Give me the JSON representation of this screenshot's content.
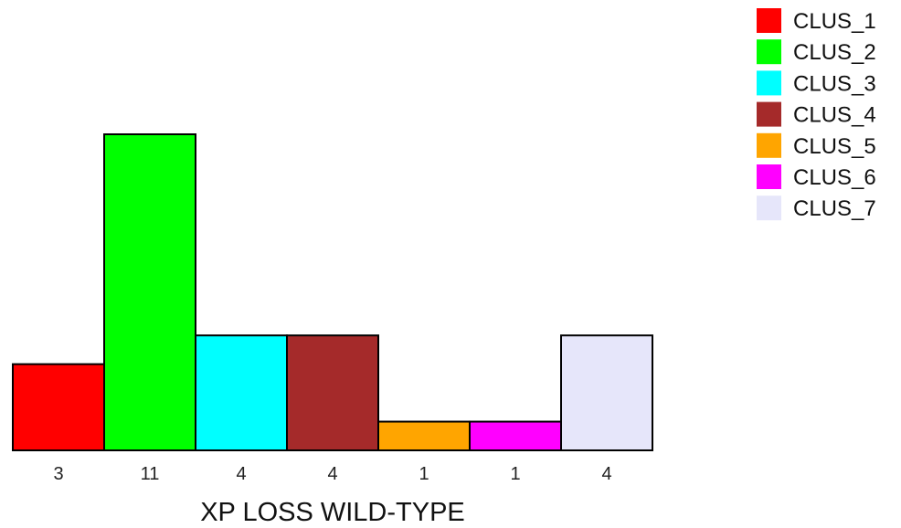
{
  "chart_data": {
    "type": "bar",
    "categories": [
      "CLUS_1",
      "CLUS_2",
      "CLUS_3",
      "CLUS_4",
      "CLUS_5",
      "CLUS_6",
      "CLUS_7"
    ],
    "values": [
      3,
      11,
      4,
      4,
      1,
      1,
      4
    ],
    "data_labels": [
      "3",
      "11",
      "4",
      "4",
      "1",
      "1",
      "4"
    ],
    "colors": [
      "#ff0000",
      "#00ff00",
      "#00ffff",
      "#a52a2a",
      "#ffa500",
      "#ff00ff",
      "#e6e6fa"
    ],
    "xlabel": "XP LOSS WILD-TYPE",
    "ylim": [
      0,
      11
    ],
    "grid": false,
    "legend": {
      "placement": "top-right",
      "entries": [
        "CLUS_1",
        "CLUS_2",
        "CLUS_3",
        "CLUS_4",
        "CLUS_5",
        "CLUS_6",
        "CLUS_7"
      ]
    }
  }
}
